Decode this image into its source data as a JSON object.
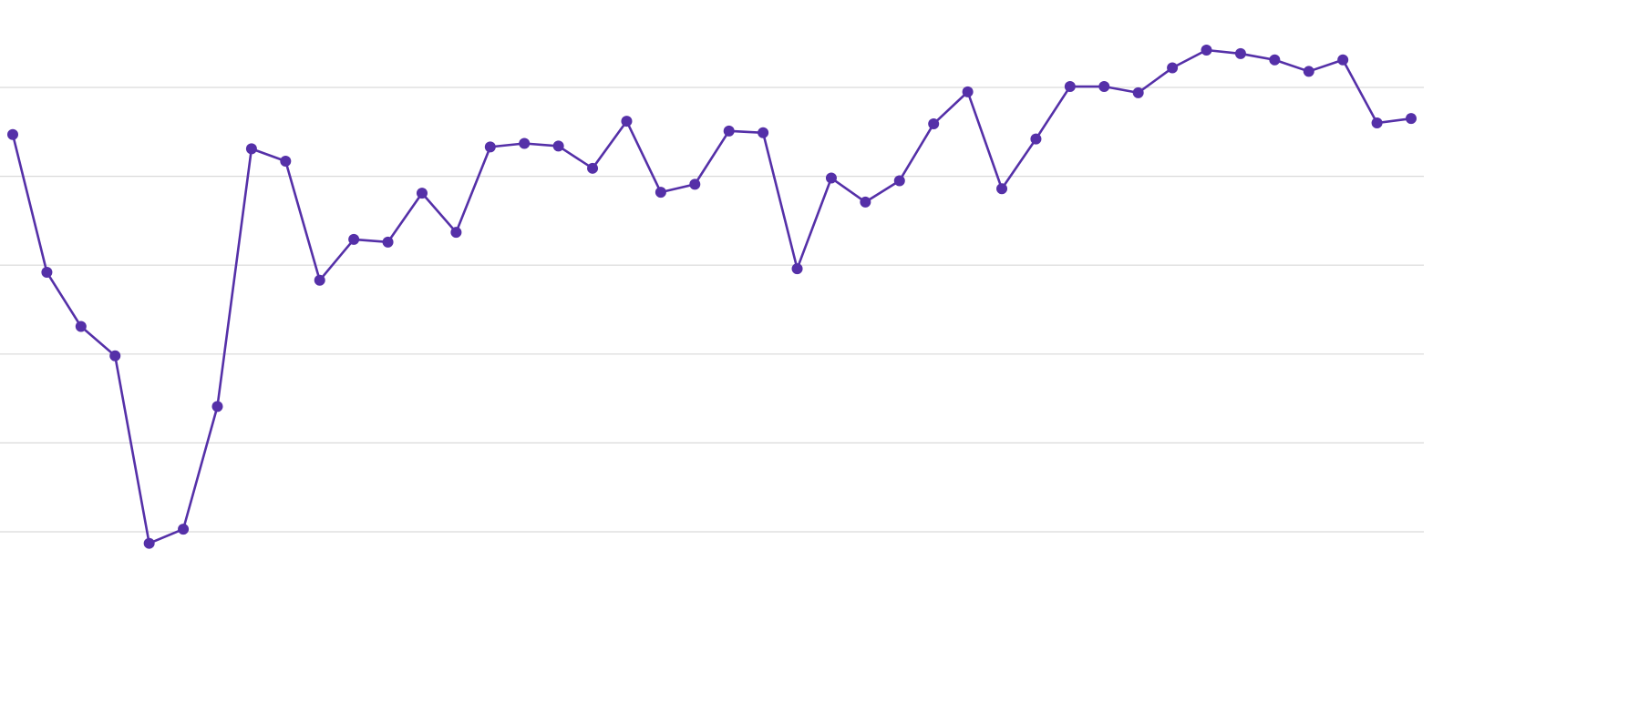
{
  "chart_data": {
    "type": "line",
    "categories": [
      null,
      null,
      null,
      null,
      null,
      null,
      null,
      null,
      null,
      null,
      null,
      null,
      null,
      null,
      null,
      null,
      null,
      null,
      null,
      null,
      null,
      null,
      null,
      null,
      null,
      null,
      null,
      null,
      null,
      null,
      null,
      null,
      null,
      null,
      null,
      null,
      null,
      null,
      null,
      null,
      null,
      null
    ],
    "series": [
      {
        "color": "#5530a8",
        "values": [
          4.47,
          2.92,
          2.31,
          1.98,
          -0.13,
          0.03,
          1.41,
          4.31,
          4.17,
          2.83,
          3.29,
          3.26,
          3.81,
          3.37,
          4.33,
          4.37,
          4.34,
          4.09,
          4.62,
          3.82,
          3.91,
          4.51,
          4.49,
          2.96,
          3.98,
          3.71,
          3.95,
          4.59,
          4.95,
          3.86,
          4.42,
          5.01,
          5.01,
          4.94,
          5.22,
          5.42,
          5.38,
          5.31,
          5.18,
          5.31,
          4.6,
          4.65
        ]
      }
    ],
    "ylim": [
      -0.5,
      6
    ],
    "yticks": [
      0,
      1,
      2,
      3,
      4,
      5
    ],
    "grid": true
  }
}
